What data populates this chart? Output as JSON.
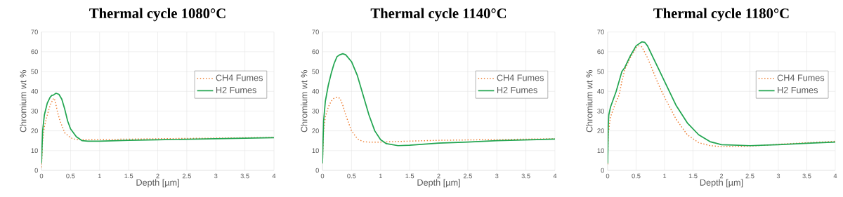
{
  "chart_data": [
    {
      "type": "line",
      "title": "Thermal cycle 1080°C",
      "xlabel": "Depth [µm]",
      "ylabel": "Chromium wt %",
      "xlim": [
        0,
        4
      ],
      "ylim": [
        0,
        70
      ],
      "xticks": [
        0,
        0.5,
        1,
        1.5,
        2,
        2.5,
        3,
        3.5,
        4
      ],
      "yticks": [
        0,
        10,
        20,
        30,
        40,
        50,
        60,
        70
      ],
      "grid": true,
      "legend": "right",
      "series": [
        {
          "name": "CH4 Fumes",
          "color": "#ed7d31",
          "line_style": "dotted",
          "x": [
            0,
            0.02,
            0.05,
            0.1,
            0.15,
            0.2,
            0.22,
            0.25,
            0.28,
            0.32,
            0.4,
            0.5,
            0.6,
            0.8,
            1,
            2,
            3,
            4
          ],
          "values": [
            1.5,
            15,
            22,
            28,
            33,
            36,
            36.5,
            33,
            29,
            25,
            19,
            16.5,
            15.5,
            15.5,
            15.6,
            16,
            16.3,
            16.7
          ]
        },
        {
          "name": "H2 Fumes",
          "color": "#22a550",
          "line_style": "solid",
          "x": [
            0,
            0.02,
            0.05,
            0.1,
            0.15,
            0.18,
            0.2,
            0.25,
            0.3,
            0.35,
            0.4,
            0.45,
            0.5,
            0.6,
            0.7,
            0.8,
            1,
            1.5,
            2,
            3,
            4
          ],
          "values": [
            3.5,
            20,
            28,
            34,
            37,
            38,
            38,
            39,
            38.5,
            36,
            31,
            25,
            21,
            17,
            15,
            14.8,
            14.8,
            15.2,
            15.5,
            16,
            16.5
          ]
        }
      ]
    },
    {
      "type": "line",
      "title": "Thermal cycle 1140°C",
      "xlabel": "Depth [µm]",
      "ylabel": "Chromium wt %",
      "xlim": [
        0,
        4
      ],
      "ylim": [
        0,
        70
      ],
      "xticks": [
        0,
        0.5,
        1,
        1.5,
        2,
        2.5,
        3,
        3.5,
        4
      ],
      "yticks": [
        0,
        10,
        20,
        30,
        40,
        50,
        60,
        70
      ],
      "grid": true,
      "legend": "right",
      "series": [
        {
          "name": "CH4 Fumes",
          "color": "#ed7d31",
          "line_style": "dotted",
          "x": [
            0,
            0.02,
            0.05,
            0.1,
            0.15,
            0.2,
            0.25,
            0.3,
            0.35,
            0.4,
            0.45,
            0.5,
            0.6,
            0.7,
            0.8,
            1,
            1.5,
            2,
            3,
            4
          ],
          "values": [
            3.5,
            20,
            27,
            32,
            35,
            36.5,
            37,
            36.5,
            33,
            28,
            24,
            20,
            16,
            14.5,
            14.3,
            14.3,
            14.8,
            15.2,
            15.6,
            16
          ]
        },
        {
          "name": "H2 Fumes",
          "color": "#22a550",
          "line_style": "solid",
          "x": [
            0,
            0.02,
            0.05,
            0.1,
            0.15,
            0.2,
            0.25,
            0.3,
            0.35,
            0.4,
            0.5,
            0.6,
            0.7,
            0.8,
            0.9,
            1,
            1.1,
            1.3,
            1.5,
            2,
            2.5,
            3,
            4
          ],
          "values": [
            3.5,
            25,
            35,
            43,
            49,
            54,
            57.5,
            58.5,
            59,
            58.5,
            55,
            48,
            38,
            28,
            20,
            15.5,
            13.5,
            12.5,
            12.7,
            13.8,
            14.3,
            15,
            15.8
          ]
        }
      ]
    },
    {
      "type": "line",
      "title": "Thermal cycle 1180°C",
      "xlabel": "Depth [µm]",
      "ylabel": "Chromium wt %",
      "xlim": [
        0,
        4
      ],
      "ylim": [
        0,
        70
      ],
      "xticks": [
        0,
        0.5,
        1,
        1.5,
        2,
        2.5,
        3,
        3.5,
        4
      ],
      "yticks": [
        0,
        10,
        20,
        30,
        40,
        50,
        60,
        70
      ],
      "grid": true,
      "legend": "right",
      "series": [
        {
          "name": "CH4 Fumes",
          "color": "#ed7d31",
          "line_style": "dotted",
          "x": [
            0,
            0.01,
            0.03,
            0.05,
            0.1,
            0.15,
            0.2,
            0.25,
            0.3,
            0.4,
            0.5,
            0.55,
            0.6,
            0.7,
            0.8,
            0.9,
            1,
            1.2,
            1.4,
            1.6,
            1.8,
            2,
            2.5,
            3,
            3.5,
            4
          ],
          "values": [
            3,
            18,
            23,
            27,
            31,
            35,
            38,
            45,
            51,
            57,
            62,
            63,
            62.5,
            57,
            50,
            43,
            37,
            26,
            18,
            14,
            12.5,
            12,
            12.2,
            13.2,
            14,
            14.7
          ]
        },
        {
          "name": "H2 Fumes",
          "color": "#22a550",
          "line_style": "solid",
          "x": [
            0,
            0.01,
            0.02,
            0.05,
            0.1,
            0.15,
            0.2,
            0.25,
            0.3,
            0.35,
            0.4,
            0.5,
            0.6,
            0.65,
            0.7,
            0.8,
            0.9,
            1,
            1.2,
            1.4,
            1.6,
            1.8,
            2,
            2.5,
            3,
            3.5,
            4
          ],
          "values": [
            3.5,
            22,
            28,
            32,
            36,
            40,
            45,
            50,
            52,
            55,
            58,
            63,
            65,
            64.8,
            63,
            57,
            51,
            45,
            33,
            24,
            18,
            14.5,
            13,
            12.5,
            13,
            13.7,
            14.3
          ]
        }
      ]
    }
  ]
}
